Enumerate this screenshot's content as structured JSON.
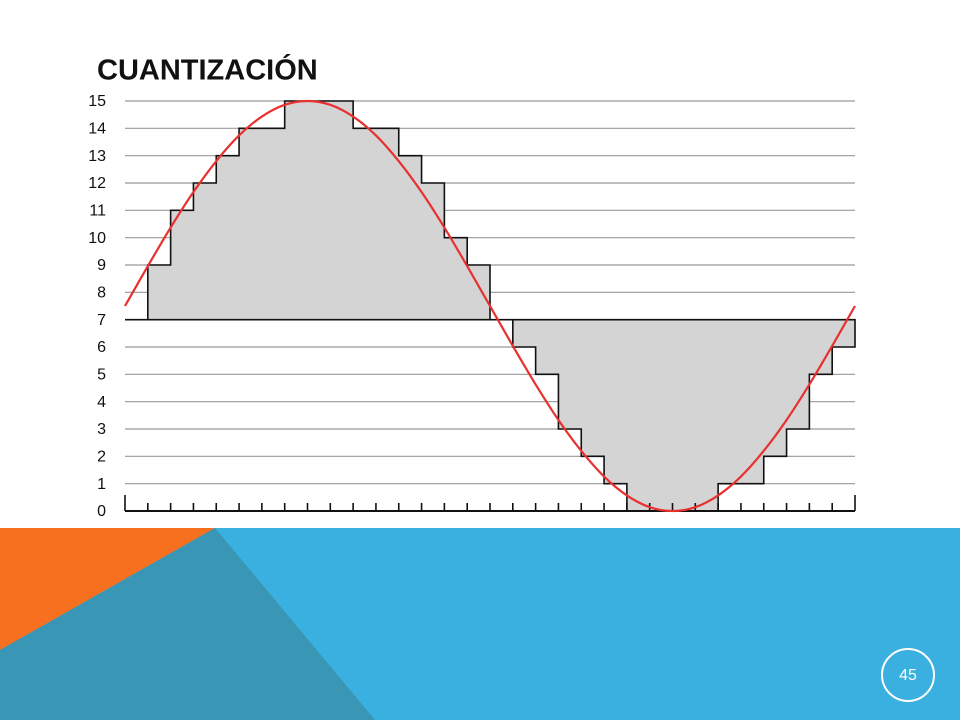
{
  "title": "CUANTIZACIÓN",
  "page_number": "45",
  "chart_data": {
    "type": "step",
    "ylim": [
      0,
      15
    ],
    "yticks": [
      0,
      1,
      2,
      3,
      4,
      5,
      6,
      7,
      8,
      9,
      10,
      11,
      12,
      13,
      14,
      15
    ],
    "grid": true,
    "baseline": 7,
    "series": [
      {
        "color": "#d4d4d4",
        "values": [
          7,
          9,
          11,
          12,
          13,
          14,
          14,
          15,
          15,
          15,
          14,
          14,
          13,
          12,
          10,
          9,
          7,
          6,
          5,
          3,
          2,
          1,
          0,
          0,
          0,
          0,
          1,
          1,
          2,
          3,
          5,
          6
        ]
      },
      {
        "color": "#e8312f",
        "values": [
          7.5,
          8.96,
          10.37,
          11.67,
          12.8,
          13.74,
          14.43,
          14.86,
          15,
          14.86,
          14.43,
          13.74,
          12.8,
          11.67,
          10.37,
          8.96,
          7.5,
          6.04,
          4.63,
          3.33,
          2.2,
          1.26,
          0.57,
          0.14,
          0,
          0.14,
          0.57,
          1.26,
          2.2,
          3.33,
          4.63,
          6.04,
          7.5
        ]
      }
    ]
  }
}
